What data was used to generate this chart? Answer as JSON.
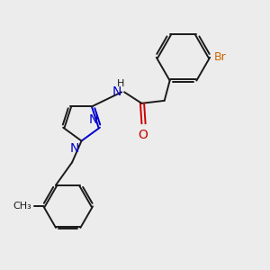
{
  "bg_color": "#ececec",
  "bond_color": "#1a1a1a",
  "n_color": "#0000cc",
  "o_color": "#cc0000",
  "br_color": "#cc6600",
  "line_width": 1.4,
  "font_size": 9,
  "xlim": [
    0,
    10
  ],
  "ylim": [
    0,
    10
  ]
}
